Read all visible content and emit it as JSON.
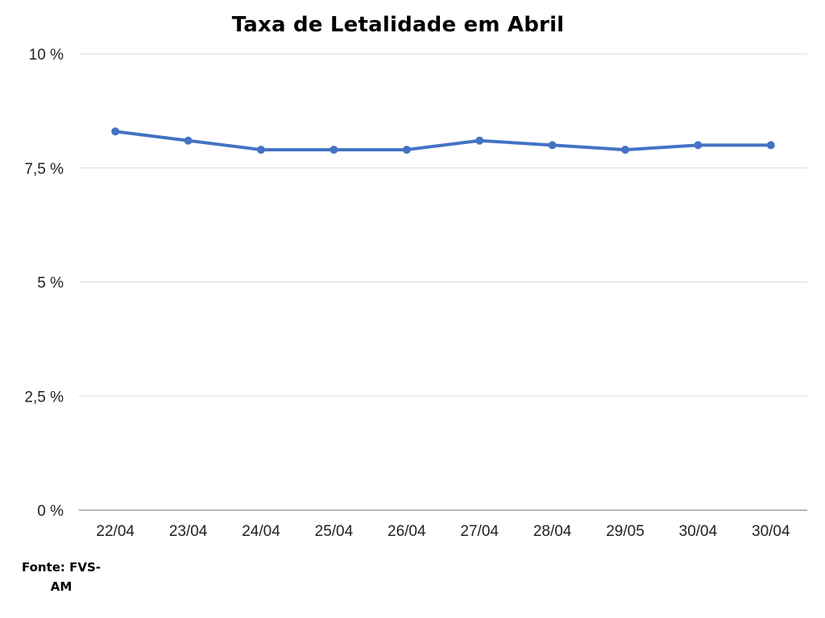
{
  "chart_data": {
    "type": "line",
    "title": "Taxa de Letalidade em Abril",
    "categories": [
      "22/04",
      "23/04",
      "24/04",
      "25/04",
      "26/04",
      "27/04",
      "28/04",
      "29/05",
      "30/04",
      "30/04"
    ],
    "series": [
      {
        "values": [
          8.3,
          8.1,
          7.9,
          7.9,
          7.9,
          8.1,
          8.0,
          7.9,
          8.0,
          8.0
        ],
        "color": "#4472C4"
      }
    ],
    "ylim": [
      0,
      10
    ],
    "yticks": [
      0,
      2.5,
      5,
      7.5,
      10
    ],
    "ytick_labels": [
      "0 %",
      "2,5 %",
      "5 %",
      "7,5 %",
      "10 %"
    ],
    "xlabel": "",
    "ylabel": "",
    "grid": true,
    "legend": "none"
  },
  "source_note": "Fonte: FVS-AM"
}
